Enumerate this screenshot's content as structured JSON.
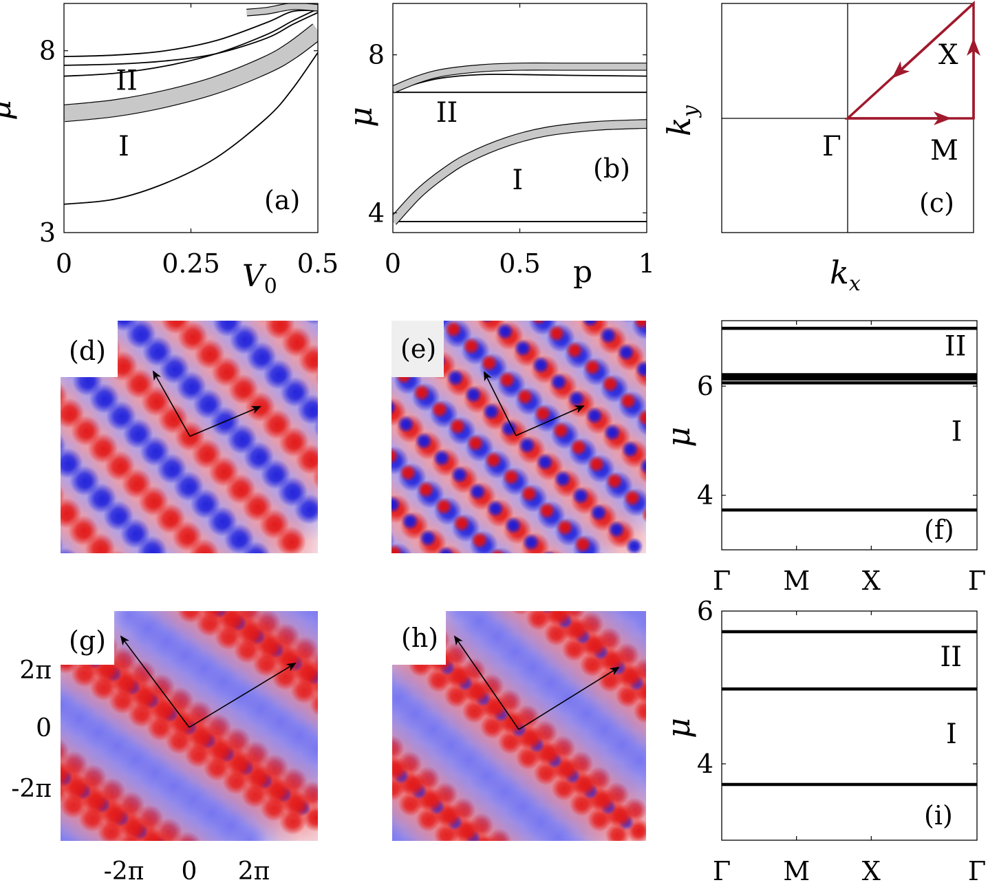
{
  "colors": {
    "path": "#a0192d",
    "red": "#e01010",
    "blue": "#1a1ad8",
    "band": "#c8c8c8"
  },
  "chart_data": [
    {
      "id": "a",
      "type": "line",
      "panel_label": "(a)",
      "xlabel_var": "V",
      "xlabel_sub": "0",
      "ylabel": "μ",
      "xlim": [
        0,
        0.5
      ],
      "ylim": [
        3,
        9.3
      ],
      "xticks": [
        {
          "v": 0,
          "t": "0"
        },
        {
          "v": 0.25,
          "t": "0.25"
        },
        {
          "v": 0.5,
          "t": "0.5"
        }
      ],
      "yticks": [
        {
          "v": 3,
          "t": "3"
        },
        {
          "v": 8,
          "t": "8"
        }
      ],
      "region_labels": [
        {
          "t": "I",
          "x": 0.107,
          "y": 5.12
        },
        {
          "t": "II",
          "x": 0.102,
          "y": 6.93
        }
      ],
      "series": [
        {
          "x": [
            0,
            0.1,
            0.2,
            0.3,
            0.4,
            0.45,
            0.5
          ],
          "y": [
            3.78,
            3.92,
            4.36,
            5.06,
            6.16,
            6.95,
            7.95
          ]
        },
        {
          "x": [
            0,
            0.1,
            0.2,
            0.3,
            0.4,
            0.45,
            0.5
          ],
          "y": [
            6.28,
            6.42,
            6.68,
            7.06,
            7.62,
            8.02,
            8.55
          ],
          "band": 0.22
        },
        {
          "x": [
            0,
            0.1,
            0.2,
            0.3,
            0.4,
            0.45,
            0.5
          ],
          "y": [
            7.3,
            7.38,
            7.58,
            7.92,
            8.45,
            8.82,
            9.15
          ]
        },
        {
          "x": [
            0,
            0.1,
            0.2,
            0.3,
            0.4,
            0.45,
            0.5
          ],
          "y": [
            7.6,
            7.63,
            7.72,
            7.92,
            8.35,
            8.72,
            9.05
          ]
        },
        {
          "x": [
            0,
            0.1,
            0.2,
            0.3,
            0.4,
            0.45,
            0.5
          ],
          "y": [
            7.84,
            7.88,
            8.0,
            8.28,
            8.78,
            9.08,
            9.1
          ]
        },
        {
          "x": [
            0.36,
            0.4,
            0.45,
            0.5
          ],
          "y": [
            9.05,
            9.1,
            9.22,
            9.18
          ],
          "band": 0.08
        }
      ]
    },
    {
      "id": "b",
      "type": "line",
      "panel_label": "(b)",
      "xlabel": "p",
      "ylabel": "μ",
      "xlim": [
        0,
        1
      ],
      "ylim": [
        3.5,
        9.3
      ],
      "xticks": [
        {
          "v": 0,
          "t": "0"
        },
        {
          "v": 0.5,
          "t": "0.5"
        },
        {
          "v": 1,
          "t": "1"
        }
      ],
      "yticks": [
        {
          "v": 4,
          "t": "4"
        },
        {
          "v": 8,
          "t": "8"
        }
      ],
      "region_labels": [
        {
          "t": "I",
          "x": 0.47,
          "y": 4.6
        },
        {
          "t": "II",
          "x": 0.17,
          "y": 6.3
        }
      ],
      "series": [
        {
          "x": [
            0,
            1
          ],
          "y": [
            3.78,
            3.78
          ]
        },
        {
          "x": [
            0,
            0.1,
            0.2,
            0.3,
            0.45,
            0.6,
            0.8,
            1.0
          ],
          "y": [
            3.78,
            4.48,
            5.0,
            5.4,
            5.8,
            6.05,
            6.2,
            6.25
          ],
          "band": 0.1
        },
        {
          "x": [
            0,
            1
          ],
          "y": [
            7.05,
            7.05
          ]
        },
        {
          "x": [
            0,
            0.1,
            0.2,
            0.35,
            0.5,
            0.7,
            1.0
          ],
          "y": [
            7.08,
            7.28,
            7.42,
            7.5,
            7.5,
            7.48,
            7.46
          ]
        },
        {
          "x": [
            0,
            0.1,
            0.2,
            0.35,
            0.5,
            0.7,
            1.0
          ],
          "y": [
            7.12,
            7.38,
            7.55,
            7.66,
            7.7,
            7.7,
            7.7
          ],
          "band": 0.08
        }
      ]
    },
    {
      "id": "f",
      "type": "line",
      "panel_label": "(f)",
      "ylabel": "μ",
      "ylim": [
        3,
        7.2
      ],
      "xticks": [
        {
          "v": 0,
          "t": "Γ"
        },
        {
          "v": 1,
          "t": "M"
        },
        {
          "v": 2,
          "t": "X"
        },
        {
          "v": 3.414,
          "t": "Γ"
        }
      ],
      "yticks": [
        {
          "v": 4,
          "t": "4"
        },
        {
          "v": 6,
          "t": "6"
        }
      ],
      "region_labels": [
        {
          "t": "I",
          "x": 3.07,
          "y": 5.0
        },
        {
          "t": "II",
          "x": 2.98,
          "y": 6.56
        }
      ],
      "levels": [
        3.73,
        6.06,
        6.13,
        6.17,
        6.21,
        7.06
      ]
    },
    {
      "id": "i",
      "type": "line",
      "panel_label": "(i)",
      "ylabel": "μ",
      "ylim": [
        3,
        6
      ],
      "xticks": [
        {
          "v": 0,
          "t": "Γ"
        },
        {
          "v": 1,
          "t": "M"
        },
        {
          "v": 2,
          "t": "X"
        },
        {
          "v": 3.414,
          "t": "Γ"
        }
      ],
      "yticks": [
        {
          "v": 4,
          "t": "4"
        },
        {
          "v": 6,
          "t": "6"
        }
      ],
      "region_labels": [
        {
          "t": "I",
          "x": 3.0,
          "y": 4.27
        },
        {
          "t": "II",
          "x": 2.92,
          "y": 5.28
        }
      ],
      "levels": [
        3.73,
        4.98,
        5.73
      ]
    }
  ],
  "panel_c": {
    "label": "(c)",
    "xlabel_var": "k",
    "xlabel_sub": "x",
    "ylabel_var": "k",
    "ylabel_sub": "y",
    "points": [
      {
        "t": "Γ"
      },
      {
        "t": "M"
      },
      {
        "t": "X"
      }
    ]
  },
  "maps": [
    {
      "id": "d",
      "label": "(d)"
    },
    {
      "id": "e",
      "label": "(e)"
    },
    {
      "id": "g",
      "label": "(g)",
      "xticks": [
        "-2π",
        "0",
        "2π"
      ],
      "yticks": [
        "2π",
        "0",
        "-2π"
      ]
    },
    {
      "id": "h",
      "label": "(h)"
    }
  ]
}
